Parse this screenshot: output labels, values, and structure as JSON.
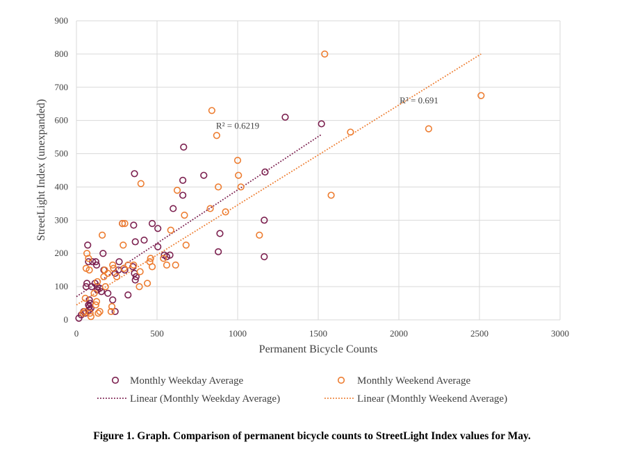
{
  "caption": "Figure 1. Graph. Comparison of permanent bicycle counts to StreetLight Index values for May.",
  "colors": {
    "weekday": "#7b1f4e",
    "weekend": "#ed7d31",
    "grid": "#d9d9d9",
    "text": "#404040"
  },
  "chart_data": {
    "type": "scatter",
    "xlabel": "Permanent Bicycle Counts",
    "ylabel": "StreetLight Index (unexpanded)",
    "xlim": [
      0,
      3000
    ],
    "ylim": [
      0,
      900
    ],
    "x_ticks": [
      0,
      500,
      1000,
      1500,
      2000,
      2500,
      3000
    ],
    "y_ticks": [
      0,
      100,
      200,
      300,
      400,
      500,
      600,
      700,
      800,
      900
    ],
    "grid": true,
    "legend_position": "bottom",
    "legend": {
      "weekday": "Monthly Weekday Average",
      "weekend": "Monthly Weekend Average",
      "weekday_linear": "Linear (Monthly Weekday Average)",
      "weekend_linear": "Linear (Monthly Weekend Average)"
    },
    "series": [
      {
        "name": "Monthly Weekday Average",
        "marker": "open-circle",
        "points": [
          [
            15,
            5
          ],
          [
            30,
            15
          ],
          [
            45,
            25
          ],
          [
            55,
            20
          ],
          [
            60,
            100
          ],
          [
            65,
            110
          ],
          [
            70,
            225
          ],
          [
            75,
            175
          ],
          [
            75,
            45
          ],
          [
            80,
            40
          ],
          [
            80,
            60
          ],
          [
            80,
            30
          ],
          [
            85,
            50
          ],
          [
            90,
            35
          ],
          [
            95,
            100
          ],
          [
            100,
            175
          ],
          [
            115,
            110
          ],
          [
            120,
            175
          ],
          [
            125,
            165
          ],
          [
            130,
            100
          ],
          [
            145,
            95
          ],
          [
            155,
            85
          ],
          [
            165,
            200
          ],
          [
            170,
            150
          ],
          [
            195,
            80
          ],
          [
            225,
            60
          ],
          [
            240,
            25
          ],
          [
            260,
            150
          ],
          [
            265,
            175
          ],
          [
            285,
            290
          ],
          [
            300,
            150
          ],
          [
            320,
            75
          ],
          [
            350,
            160
          ],
          [
            355,
            285
          ],
          [
            360,
            140
          ],
          [
            365,
            120
          ],
          [
            365,
            235
          ],
          [
            370,
            130
          ],
          [
            420,
            240
          ],
          [
            470,
            290
          ],
          [
            505,
            275
          ],
          [
            505,
            220
          ],
          [
            560,
            190
          ],
          [
            580,
            195
          ],
          [
            600,
            335
          ],
          [
            660,
            420
          ],
          [
            660,
            375
          ],
          [
            665,
            520
          ],
          [
            790,
            435
          ],
          [
            880,
            205
          ],
          [
            890,
            260
          ],
          [
            1165,
            300
          ],
          [
            1165,
            190
          ],
          [
            1170,
            445
          ],
          [
            1295,
            610
          ],
          [
            1520,
            590
          ],
          [
            360,
            440
          ],
          [
            545,
            195
          ],
          [
            240,
            140
          ],
          [
            130,
            90
          ]
        ]
      },
      {
        "name": "Monthly Weekend Average",
        "marker": "open-circle",
        "points": [
          [
            40,
            20
          ],
          [
            50,
            25
          ],
          [
            55,
            65
          ],
          [
            60,
            155
          ],
          [
            65,
            200
          ],
          [
            75,
            185
          ],
          [
            80,
            150
          ],
          [
            85,
            20
          ],
          [
            90,
            10
          ],
          [
            110,
            80
          ],
          [
            120,
            45
          ],
          [
            125,
            55
          ],
          [
            130,
            115
          ],
          [
            135,
            20
          ],
          [
            145,
            25
          ],
          [
            160,
            255
          ],
          [
            170,
            130
          ],
          [
            175,
            150
          ],
          [
            180,
            100
          ],
          [
            195,
            140
          ],
          [
            215,
            25
          ],
          [
            220,
            40
          ],
          [
            225,
            165
          ],
          [
            230,
            155
          ],
          [
            285,
            290
          ],
          [
            290,
            225
          ],
          [
            295,
            155
          ],
          [
            300,
            290
          ],
          [
            355,
            165
          ],
          [
            390,
            100
          ],
          [
            395,
            145
          ],
          [
            400,
            410
          ],
          [
            440,
            110
          ],
          [
            455,
            175
          ],
          [
            460,
            185
          ],
          [
            470,
            160
          ],
          [
            540,
            185
          ],
          [
            560,
            165
          ],
          [
            585,
            270
          ],
          [
            615,
            165
          ],
          [
            625,
            390
          ],
          [
            670,
            315
          ],
          [
            680,
            225
          ],
          [
            830,
            335
          ],
          [
            840,
            630
          ],
          [
            870,
            555
          ],
          [
            880,
            400
          ],
          [
            925,
            325
          ],
          [
            1000,
            480
          ],
          [
            1005,
            435
          ],
          [
            1020,
            400
          ],
          [
            1135,
            255
          ],
          [
            1540,
            800
          ],
          [
            1580,
            375
          ],
          [
            1700,
            565
          ],
          [
            2185,
            575
          ],
          [
            2510,
            675
          ],
          [
            250,
            130
          ],
          [
            320,
            165
          ]
        ]
      }
    ],
    "trendlines": [
      {
        "name": "Linear (Monthly Weekday Average)",
        "x": [
          0,
          1520
        ],
        "y": [
          70,
          558
        ],
        "r2_label": "R² = 0.6219",
        "r2_at": [
          1000,
          575
        ]
      },
      {
        "name": "Linear (Monthly Weekend Average)",
        "x": [
          0,
          2510
        ],
        "y": [
          45,
          800
        ],
        "r2_label": "R² = 0.691",
        "r2_at": [
          2125,
          652
        ]
      }
    ]
  }
}
